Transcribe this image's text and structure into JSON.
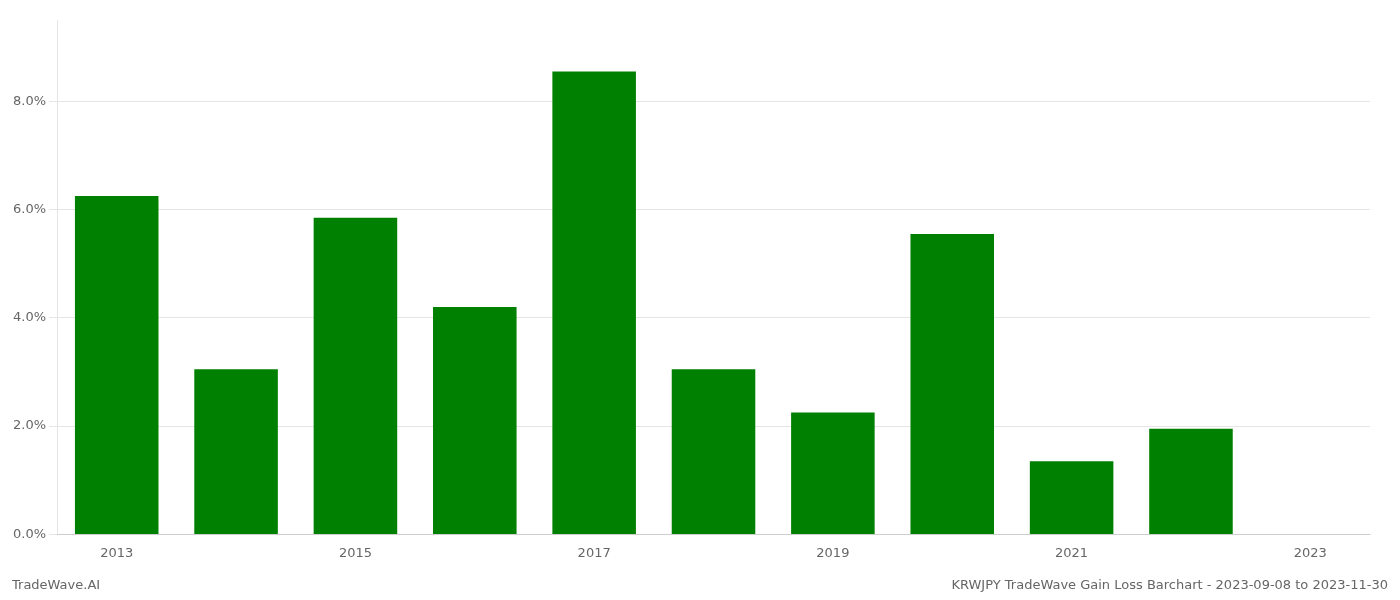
{
  "chart_data": {
    "type": "bar",
    "title": "KRWJPY TradeWave Gain Loss Barchart - 2023-09-08 to 2023-11-30",
    "annotations": [
      "TradeWave.AI"
    ],
    "categories": [
      "2013",
      null,
      "2015",
      null,
      "2017",
      null,
      "2019",
      null,
      "2021",
      null,
      "2023"
    ],
    "values": [
      0.0625,
      0.0305,
      0.0585,
      0.042,
      0.0855,
      0.0305,
      0.0225,
      0.0555,
      0.0135,
      0.0195,
      0.0
    ],
    "color": "#008000",
    "ylim": [
      0,
      0.095
    ],
    "yticks": [
      {
        "value": 0.0,
        "label": "0.0%"
      },
      {
        "value": 0.02,
        "label": "2.0%"
      },
      {
        "value": 0.04,
        "label": "4.0%"
      },
      {
        "value": 0.06,
        "label": "6.0%"
      },
      {
        "value": 0.08,
        "label": "8.0%"
      }
    ],
    "grid": true
  }
}
